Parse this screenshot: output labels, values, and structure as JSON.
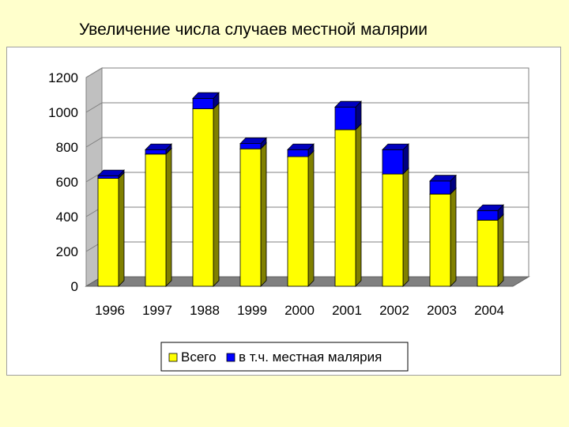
{
  "slide": {
    "title": "Увеличение числа случаев местной малярии"
  },
  "chart_data": {
    "type": "bar",
    "stacked": true,
    "three_d": true,
    "categories": [
      "1996",
      "1997",
      "1988",
      "1999",
      "2000",
      "2001",
      "2002",
      "2003",
      "2004"
    ],
    "series": [
      {
        "name": "Всего",
        "color": "#ffff00",
        "values": [
          620,
          760,
          1020,
          790,
          745,
          900,
          645,
          530,
          380
        ]
      },
      {
        "name": "в т.ч. местная малярия",
        "color": "#0000ff",
        "values": [
          15,
          25,
          60,
          30,
          40,
          130,
          140,
          75,
          55
        ]
      }
    ],
    "ylim": [
      0,
      1200
    ],
    "yticks": [
      0,
      200,
      400,
      600,
      800,
      1000,
      1200
    ],
    "grid": true,
    "legend_position": "bottom"
  }
}
